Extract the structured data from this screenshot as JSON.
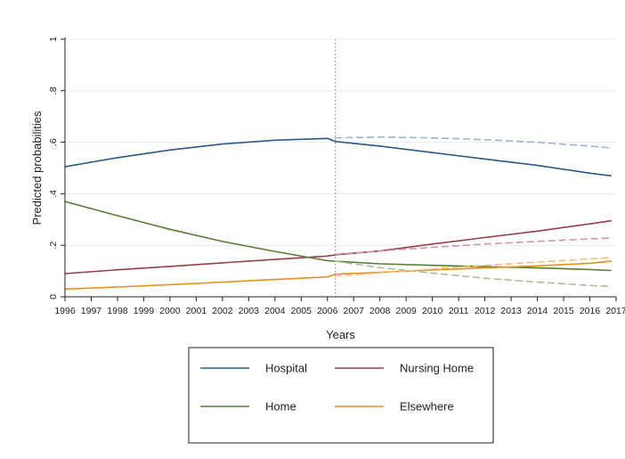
{
  "chart_data": {
    "type": "line",
    "xlabel": "Years",
    "ylabel": "Predicted probabilities",
    "xlim": [
      1996,
      2017
    ],
    "ylim": [
      0,
      1
    ],
    "x_ticks": [
      "1996",
      "1997",
      "1998",
      "1999",
      "2000",
      "2001",
      "2002",
      "2003",
      "2004",
      "2005",
      "2006",
      "2007",
      "2008",
      "2009",
      "2010",
      "2011",
      "2012",
      "2013",
      "2014",
      "2015",
      "2016",
      "2017"
    ],
    "y_ticks": [
      {
        "value": 0,
        "label": "0"
      },
      {
        "value": 0.2,
        "label": ".2"
      },
      {
        "value": 0.4,
        "label": ".4"
      },
      {
        "value": 0.6,
        "label": ".6"
      },
      {
        "value": 0.8,
        "label": ".8"
      },
      {
        "value": 1,
        "label": "1"
      }
    ],
    "grid": "horizontal",
    "reference_line_x": 2006.3,
    "legend_position": "bottom",
    "series": [
      {
        "name": "Hospital",
        "color": "#2a5b87",
        "style": "solid",
        "x": [
          1996,
          1998,
          2000,
          2002,
          2004,
          2006,
          2006.3,
          2008,
          2010,
          2012,
          2014,
          2016,
          2016.8
        ],
        "values": [
          0.505,
          0.54,
          0.57,
          0.593,
          0.608,
          0.615,
          0.603,
          0.585,
          0.56,
          0.535,
          0.51,
          0.48,
          0.47
        ]
      },
      {
        "name": "Nursing Home",
        "color": "#9b3d4a",
        "style": "solid",
        "x": [
          1996,
          1998,
          2000,
          2002,
          2004,
          2006,
          2006.3,
          2008,
          2010,
          2012,
          2014,
          2016,
          2016.8
        ],
        "values": [
          0.09,
          0.105,
          0.118,
          0.132,
          0.145,
          0.158,
          0.163,
          0.178,
          0.205,
          0.23,
          0.255,
          0.283,
          0.295
        ]
      },
      {
        "name": "Home",
        "color": "#577d32",
        "style": "solid",
        "x": [
          1996,
          1998,
          2000,
          2002,
          2004,
          2006,
          2006.3,
          2008,
          2010,
          2012,
          2014,
          2016,
          2016.8
        ],
        "values": [
          0.37,
          0.315,
          0.262,
          0.215,
          0.176,
          0.14,
          0.138,
          0.128,
          0.122,
          0.117,
          0.112,
          0.106,
          0.102
        ]
      },
      {
        "name": "Elsewhere",
        "color": "#e8901c",
        "style": "solid",
        "x": [
          1996,
          1998,
          2000,
          2002,
          2004,
          2006,
          2006.3,
          2008,
          2010,
          2012,
          2014,
          2016,
          2016.8
        ],
        "values": [
          0.03,
          0.038,
          0.047,
          0.057,
          0.067,
          0.077,
          0.088,
          0.095,
          0.104,
          0.112,
          0.12,
          0.13,
          0.138
        ]
      },
      {
        "color": "#9db3cf",
        "style": "dashed",
        "x": [
          2006.3,
          2008,
          2010,
          2012,
          2014,
          2016,
          2016.8
        ],
        "values": [
          0.617,
          0.62,
          0.617,
          0.61,
          0.6,
          0.585,
          0.578
        ]
      },
      {
        "color": "#cf98a7",
        "style": "dashed",
        "x": [
          2006.3,
          2008,
          2010,
          2012,
          2014,
          2016,
          2016.8
        ],
        "values": [
          0.165,
          0.178,
          0.192,
          0.205,
          0.215,
          0.225,
          0.228
        ]
      },
      {
        "color": "#a9bc9b",
        "style": "dashed",
        "x": [
          2006.3,
          2008,
          2010,
          2012,
          2014,
          2016,
          2016.8
        ],
        "values": [
          0.138,
          0.113,
          0.092,
          0.072,
          0.057,
          0.044,
          0.04
        ]
      },
      {
        "color": "#f3be7e",
        "style": "dashed",
        "x": [
          2006.3,
          2008,
          2010,
          2012,
          2014,
          2016,
          2016.8
        ],
        "values": [
          0.08,
          0.093,
          0.108,
          0.122,
          0.135,
          0.147,
          0.152
        ]
      }
    ]
  }
}
